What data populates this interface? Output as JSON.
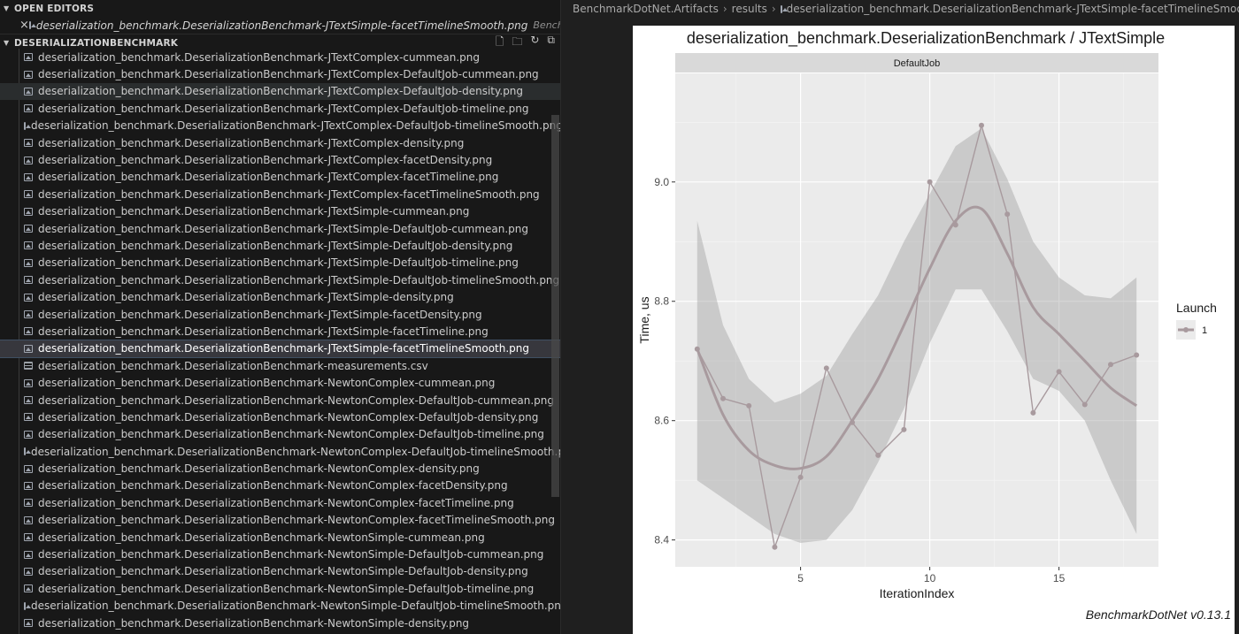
{
  "sidebar": {
    "open_editors_title": "OPEN EDITORS",
    "open_editor": {
      "name": "deserialization_benchmark.DeserializationBenchmark-JTextSimple-facetTimelineSmooth.png",
      "desc": "BenchmarkDotNet.Artifacts/results"
    },
    "explorer_title": "DESERIALIZATIONBENCHMARK",
    "files": [
      {
        "name": "deserialization_benchmark.DeserializationBenchmark-JTextComplex-cummean.png",
        "type": "img"
      },
      {
        "name": "deserialization_benchmark.DeserializationBenchmark-JTextComplex-DefaultJob-cummean.png",
        "type": "img"
      },
      {
        "name": "deserialization_benchmark.DeserializationBenchmark-JTextComplex-DefaultJob-density.png",
        "type": "img",
        "state": "hover"
      },
      {
        "name": "deserialization_benchmark.DeserializationBenchmark-JTextComplex-DefaultJob-timeline.png",
        "type": "img"
      },
      {
        "name": "deserialization_benchmark.DeserializationBenchmark-JTextComplex-DefaultJob-timelineSmooth.png",
        "type": "img"
      },
      {
        "name": "deserialization_benchmark.DeserializationBenchmark-JTextComplex-density.png",
        "type": "img"
      },
      {
        "name": "deserialization_benchmark.DeserializationBenchmark-JTextComplex-facetDensity.png",
        "type": "img"
      },
      {
        "name": "deserialization_benchmark.DeserializationBenchmark-JTextComplex-facetTimeline.png",
        "type": "img"
      },
      {
        "name": "deserialization_benchmark.DeserializationBenchmark-JTextComplex-facetTimelineSmooth.png",
        "type": "img"
      },
      {
        "name": "deserialization_benchmark.DeserializationBenchmark-JTextSimple-cummean.png",
        "type": "img"
      },
      {
        "name": "deserialization_benchmark.DeserializationBenchmark-JTextSimple-DefaultJob-cummean.png",
        "type": "img"
      },
      {
        "name": "deserialization_benchmark.DeserializationBenchmark-JTextSimple-DefaultJob-density.png",
        "type": "img"
      },
      {
        "name": "deserialization_benchmark.DeserializationBenchmark-JTextSimple-DefaultJob-timeline.png",
        "type": "img"
      },
      {
        "name": "deserialization_benchmark.DeserializationBenchmark-JTextSimple-DefaultJob-timelineSmooth.png",
        "type": "img"
      },
      {
        "name": "deserialization_benchmark.DeserializationBenchmark-JTextSimple-density.png",
        "type": "img"
      },
      {
        "name": "deserialization_benchmark.DeserializationBenchmark-JTextSimple-facetDensity.png",
        "type": "img"
      },
      {
        "name": "deserialization_benchmark.DeserializationBenchmark-JTextSimple-facetTimeline.png",
        "type": "img"
      },
      {
        "name": "deserialization_benchmark.DeserializationBenchmark-JTextSimple-facetTimelineSmooth.png",
        "type": "img",
        "state": "selected"
      },
      {
        "name": "deserialization_benchmark.DeserializationBenchmark-measurements.csv",
        "type": "csv"
      },
      {
        "name": "deserialization_benchmark.DeserializationBenchmark-NewtonComplex-cummean.png",
        "type": "img"
      },
      {
        "name": "deserialization_benchmark.DeserializationBenchmark-NewtonComplex-DefaultJob-cummean.png",
        "type": "img"
      },
      {
        "name": "deserialization_benchmark.DeserializationBenchmark-NewtonComplex-DefaultJob-density.png",
        "type": "img"
      },
      {
        "name": "deserialization_benchmark.DeserializationBenchmark-NewtonComplex-DefaultJob-timeline.png",
        "type": "img"
      },
      {
        "name": "deserialization_benchmark.DeserializationBenchmark-NewtonComplex-DefaultJob-timelineSmooth.png",
        "type": "img"
      },
      {
        "name": "deserialization_benchmark.DeserializationBenchmark-NewtonComplex-density.png",
        "type": "img"
      },
      {
        "name": "deserialization_benchmark.DeserializationBenchmark-NewtonComplex-facetDensity.png",
        "type": "img"
      },
      {
        "name": "deserialization_benchmark.DeserializationBenchmark-NewtonComplex-facetTimeline.png",
        "type": "img"
      },
      {
        "name": "deserialization_benchmark.DeserializationBenchmark-NewtonComplex-facetTimelineSmooth.png",
        "type": "img"
      },
      {
        "name": "deserialization_benchmark.DeserializationBenchmark-NewtonSimple-cummean.png",
        "type": "img"
      },
      {
        "name": "deserialization_benchmark.DeserializationBenchmark-NewtonSimple-DefaultJob-cummean.png",
        "type": "img"
      },
      {
        "name": "deserialization_benchmark.DeserializationBenchmark-NewtonSimple-DefaultJob-density.png",
        "type": "img"
      },
      {
        "name": "deserialization_benchmark.DeserializationBenchmark-NewtonSimple-DefaultJob-timeline.png",
        "type": "img"
      },
      {
        "name": "deserialization_benchmark.DeserializationBenchmark-NewtonSimple-DefaultJob-timelineSmooth.png",
        "type": "img"
      },
      {
        "name": "deserialization_benchmark.DeserializationBenchmark-NewtonSimple-density.png",
        "type": "img"
      }
    ]
  },
  "breadcrumb": {
    "items": [
      "BenchmarkDotNet.Artifacts",
      "results",
      "deserialization_benchmark.DeserializationBenchmark-JTextSimple-facetTimelineSmooth.png"
    ]
  },
  "chart_data": {
    "type": "line",
    "title": "deserialization_benchmark.DeserializationBenchmark / JTextSimple",
    "facet_label": "DefaultJob",
    "xlabel": "IterationIndex",
    "ylabel": "Time, us",
    "xlim": [
      0.15,
      18.85
    ],
    "ylim": [
      8.355,
      9.182
    ],
    "x_ticks": [
      5,
      10,
      15
    ],
    "y_ticks": [
      8.4,
      8.6,
      8.8,
      9.0
    ],
    "x_tick_labels": [
      "5",
      "10",
      "15"
    ],
    "y_tick_labels": [
      "8.4",
      "8.6",
      "8.8",
      "9.0"
    ],
    "grid": true,
    "legend": {
      "title": "Launch",
      "entries": [
        "1"
      ],
      "position": "right"
    },
    "series": [
      {
        "name": "1",
        "color": "#a89a9e",
        "x": [
          1,
          2,
          3,
          4,
          5,
          6,
          7,
          8,
          9,
          10,
          11,
          12,
          13,
          14,
          15,
          16,
          17,
          18
        ],
        "y": [
          8.72,
          8.637,
          8.625,
          8.388,
          8.505,
          8.688,
          8.597,
          8.542,
          8.585,
          9.0,
          8.928,
          9.095,
          8.946,
          8.613,
          8.682,
          8.627,
          8.694,
          8.71
        ]
      }
    ],
    "smooth": {
      "x": [
        1,
        2,
        3,
        4,
        5,
        6,
        7,
        8,
        9,
        10,
        11,
        12,
        13,
        14,
        15,
        16,
        17,
        18
      ],
      "y": [
        8.72,
        8.61,
        8.55,
        8.525,
        8.52,
        8.54,
        8.6,
        8.67,
        8.76,
        8.855,
        8.935,
        8.955,
        8.88,
        8.79,
        8.745,
        8.7,
        8.655,
        8.625
      ],
      "lower": [
        8.5,
        8.47,
        8.44,
        8.41,
        8.395,
        8.4,
        8.45,
        8.53,
        8.62,
        8.73,
        8.82,
        8.82,
        8.75,
        8.67,
        8.65,
        8.6,
        8.5,
        8.41
      ],
      "upper": [
        8.935,
        8.76,
        8.67,
        8.63,
        8.645,
        8.675,
        8.745,
        8.81,
        8.9,
        8.98,
        9.06,
        9.09,
        9.005,
        8.9,
        8.84,
        8.81,
        8.805,
        8.84
      ]
    },
    "caption": "BenchmarkDotNet v0.13.1"
  }
}
